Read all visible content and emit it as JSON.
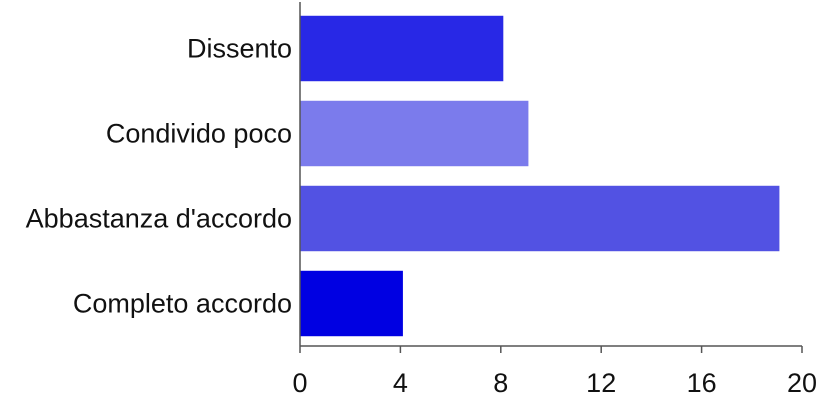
{
  "chart_data": {
    "type": "bar",
    "orientation": "horizontal",
    "categories": [
      "Dissento",
      "Condivido poco",
      "Abbastanza d'accordo",
      "Completo accordo"
    ],
    "values": [
      8.1,
      9.1,
      19.1,
      4.1
    ],
    "colors": [
      "#2828e6",
      "#7b7bec",
      "#5252e3",
      "#0000e2"
    ],
    "xlim": [
      0,
      20
    ],
    "xticks": [
      "0",
      "4",
      "8",
      "12",
      "16",
      "20"
    ],
    "title": "",
    "xlabel": "",
    "ylabel": "",
    "grid": false,
    "legend": "none"
  }
}
